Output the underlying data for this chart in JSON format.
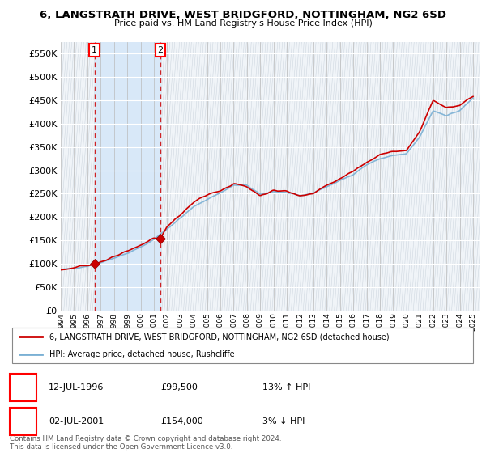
{
  "title": "6, LANGSTRATH DRIVE, WEST BRIDGFORD, NOTTINGHAM, NG2 6SD",
  "subtitle": "Price paid vs. HM Land Registry's House Price Index (HPI)",
  "ylabel_ticks": [
    "£0",
    "£50K",
    "£100K",
    "£150K",
    "£200K",
    "£250K",
    "£300K",
    "£350K",
    "£400K",
    "£450K",
    "£500K",
    "£550K"
  ],
  "ytick_values": [
    0,
    50000,
    100000,
    150000,
    200000,
    250000,
    300000,
    350000,
    400000,
    450000,
    500000,
    550000
  ],
  "ylim": [
    0,
    575000
  ],
  "xlim_start": 1994.25,
  "xlim_end": 2025.5,
  "sale1_x": 1996.53,
  "sale1_y": 99500,
  "sale1_label": "1",
  "sale1_date": "12-JUL-1996",
  "sale1_price": "£99,500",
  "sale1_hpi": "13% ↑ HPI",
  "sale2_x": 2001.5,
  "sale2_y": 154000,
  "sale2_label": "2",
  "sale2_date": "02-JUL-2001",
  "sale2_price": "£154,000",
  "sale2_hpi": "3% ↓ HPI",
  "line_color_red": "#cc0000",
  "line_color_blue": "#7ab0d4",
  "background_color": "#e8f0f8",
  "hatch_color": "#b8c4d0",
  "grid_color": "#cccccc",
  "sale_band_color": "#d8e8f8",
  "legend_label_red": "6, LANGSTRATH DRIVE, WEST BRIDGFORD, NOTTINGHAM, NG2 6SD (detached house)",
  "legend_label_blue": "HPI: Average price, detached house, Rushcliffe",
  "footnote": "Contains HM Land Registry data © Crown copyright and database right 2024.\nThis data is licensed under the Open Government Licence v3.0."
}
